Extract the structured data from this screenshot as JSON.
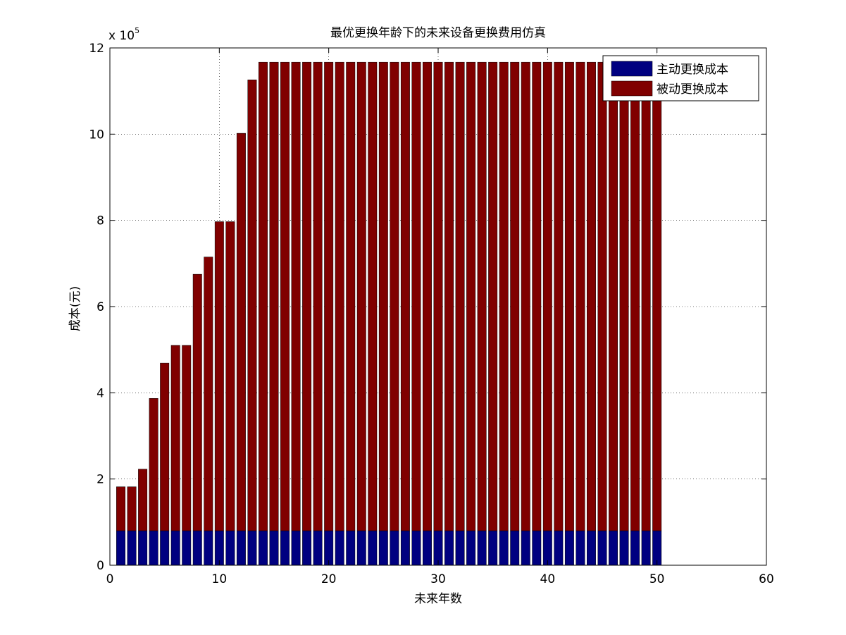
{
  "chart_data": {
    "type": "bar",
    "stacked": true,
    "title": "最优更换年龄下的未来设备更换费用仿真",
    "xlabel": "未来年数",
    "ylabel": "成本(元)",
    "y_exponent_label": "x 10",
    "y_exponent_power": "5",
    "xlim": [
      0,
      60
    ],
    "ylim": [
      0,
      12
    ],
    "x_ticks": [
      "0",
      "10",
      "20",
      "30",
      "40",
      "50",
      "60"
    ],
    "y_ticks": [
      "0",
      "2",
      "4",
      "6",
      "8",
      "10",
      "12"
    ],
    "grid": true,
    "legend_position": "top-right",
    "x": [
      1,
      2,
      3,
      4,
      5,
      6,
      7,
      8,
      9,
      10,
      11,
      12,
      13,
      14,
      15,
      16,
      17,
      18,
      19,
      20,
      21,
      22,
      23,
      24,
      25,
      26,
      27,
      28,
      29,
      30,
      31,
      32,
      33,
      34,
      35,
      36,
      37,
      38,
      39,
      40,
      41,
      42,
      43,
      44,
      45,
      46,
      47,
      48,
      49,
      50
    ],
    "series": [
      {
        "name": "主动更换成本",
        "color": "#000080",
        "values": [
          0.8,
          0.8,
          0.8,
          0.8,
          0.8,
          0.8,
          0.8,
          0.8,
          0.8,
          0.8,
          0.8,
          0.8,
          0.8,
          0.8,
          0.8,
          0.8,
          0.8,
          0.8,
          0.8,
          0.8,
          0.8,
          0.8,
          0.8,
          0.8,
          0.8,
          0.8,
          0.8,
          0.8,
          0.8,
          0.8,
          0.8,
          0.8,
          0.8,
          0.8,
          0.8,
          0.8,
          0.8,
          0.8,
          0.8,
          0.8,
          0.8,
          0.8,
          0.8,
          0.8,
          0.8,
          0.8,
          0.8,
          0.8,
          0.8,
          0.8
        ]
      },
      {
        "name": "被动更换成本",
        "color": "#800000",
        "values": [
          1.02,
          1.02,
          1.43,
          3.07,
          3.89,
          4.3,
          4.3,
          5.95,
          6.35,
          7.17,
          7.17,
          9.22,
          10.46,
          10.87,
          10.87,
          10.87,
          10.87,
          10.87,
          10.87,
          10.87,
          10.87,
          10.87,
          10.87,
          10.87,
          10.87,
          10.87,
          10.87,
          10.87,
          10.87,
          10.87,
          10.87,
          10.87,
          10.87,
          10.87,
          10.87,
          10.87,
          10.87,
          10.87,
          10.87,
          10.87,
          10.87,
          10.87,
          10.87,
          10.87,
          10.87,
          10.87,
          10.87,
          10.87,
          10.87,
          10.87
        ]
      }
    ]
  }
}
